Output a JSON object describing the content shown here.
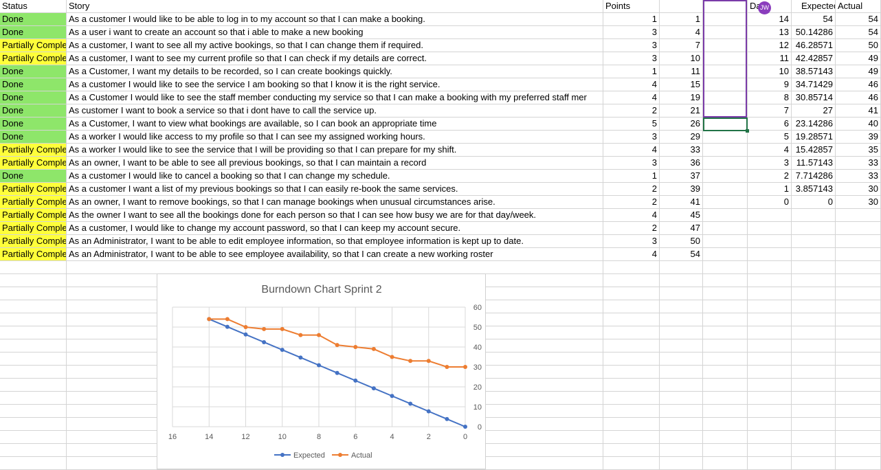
{
  "headers": {
    "status": "Status",
    "story": "Story",
    "points": "Points",
    "day": "Da",
    "expected": "Expected",
    "actual": "Actual"
  },
  "collaborator": {
    "initials": "JW",
    "color": "#8a3dbd"
  },
  "rows": [
    {
      "status": "Done",
      "story": "As a customer I would like to be able to log in to my account so that I can make a booking.",
      "points": "1",
      "cumulative": "1"
    },
    {
      "status": "Done",
      "story": "As a user i want to create an account so that i able to make a new booking",
      "points": "3",
      "cumulative": "4"
    },
    {
      "status": "Partially Comple",
      "story": "As a customer, I want to see all my active bookings, so that I can change them if required.",
      "points": "3",
      "cumulative": "7"
    },
    {
      "status": "Partially Comple",
      "story": "As a customer, I want to see my current profile so that I can check if my details are correct.",
      "points": "3",
      "cumulative": "10"
    },
    {
      "status": "Done",
      "story": "As a Customer, I want my details to be recorded, so I can create bookings quickly.",
      "points": "1",
      "cumulative": "11"
    },
    {
      "status": "Done",
      "story": "As a customer I would like to see the service I am booking so that I know it is the right service.",
      "points": "4",
      "cumulative": "15"
    },
    {
      "status": "Done",
      "story": "As a Customer I would like to see the staff member conducting my service so that I can make a booking with my preferred staff mer",
      "points": "4",
      "cumulative": "19"
    },
    {
      "status": "Done",
      "story": "As customer I want to book a service so that i dont have to call the service up.",
      "points": "2",
      "cumulative": "21"
    },
    {
      "status": "Done",
      "story": "As a Customer, I want to view what bookings are available, so I can book an appropriate time",
      "points": "5",
      "cumulative": "26"
    },
    {
      "status": "Done",
      "story": "As a worker I would like access to my profile so that I can see my assigned working hours.",
      "points": "3",
      "cumulative": "29"
    },
    {
      "status": "Partially Comple",
      "story": "As a worker I would like to see the service that I will be providing so that I can prepare for my shift.",
      "points": "4",
      "cumulative": "33"
    },
    {
      "status": "Partially Comple",
      "story": "As an owner, I want to be able to see all previous bookings, so that I can maintain a record",
      "points": "3",
      "cumulative": "36"
    },
    {
      "status": "Done",
      "story": "As a customer I would like to cancel a booking so that I can change my schedule.",
      "points": "1",
      "cumulative": "37"
    },
    {
      "status": "Partially Comple",
      "story": "As a customer I want a list of my previous bookings so that I can easily re-book the same services.",
      "points": "2",
      "cumulative": "39"
    },
    {
      "status": "Partially Comple",
      "story": "As an owner, I want to remove bookings, so that I can manage bookings when unusual circumstances arise.",
      "points": "2",
      "cumulative": "41"
    },
    {
      "status": "Partially Comple",
      "story": "As the owner I want to see all the bookings done for each person so that I can see how busy we are for that day/week.",
      "points": "4",
      "cumulative": "45"
    },
    {
      "status": "Partially Comple",
      "story": "As a customer, I would like to change my account password, so that I can keep my account secure.",
      "points": "2",
      "cumulative": "47"
    },
    {
      "status": "Partially Comple",
      "story": "As an Administrator, I want to be able to edit employee information, so that employee information is kept up to date.",
      "points": "3",
      "cumulative": "50"
    },
    {
      "status": "Partially Comple",
      "story": "As an Administrator, I want to be able to see employee availability, so that I can create a new working roster",
      "points": "4",
      "cumulative": "54"
    }
  ],
  "burndown": [
    {
      "day": "14",
      "expected": "54",
      "actual": "54"
    },
    {
      "day": "13",
      "expected": "50.14286",
      "actual": "54"
    },
    {
      "day": "12",
      "expected": "46.28571",
      "actual": "50"
    },
    {
      "day": "11",
      "expected": "42.42857",
      "actual": "49"
    },
    {
      "day": "10",
      "expected": "38.57143",
      "actual": "49"
    },
    {
      "day": "9",
      "expected": "34.71429",
      "actual": "46"
    },
    {
      "day": "8",
      "expected": "30.85714",
      "actual": "46"
    },
    {
      "day": "7",
      "expected": "27",
      "actual": "41"
    },
    {
      "day": "6",
      "expected": "23.14286",
      "actual": "40"
    },
    {
      "day": "5",
      "expected": "19.28571",
      "actual": "39"
    },
    {
      "day": "4",
      "expected": "15.42857",
      "actual": "35"
    },
    {
      "day": "3",
      "expected": "11.57143",
      "actual": "33"
    },
    {
      "day": "2",
      "expected": "7.714286",
      "actual": "33"
    },
    {
      "day": "1",
      "expected": "3.857143",
      "actual": "30"
    },
    {
      "day": "0",
      "expected": "0",
      "actual": "30"
    }
  ],
  "colors": {
    "done": "#8ee66a",
    "partial": "#ffff3a",
    "expected": "#4472c4",
    "actual": "#ed7d31"
  },
  "chart_data": {
    "type": "line",
    "title": "Burndown Chart Sprint 2",
    "x": [
      14,
      13,
      12,
      11,
      10,
      9,
      8,
      7,
      6,
      5,
      4,
      3,
      2,
      1,
      0
    ],
    "series": [
      {
        "name": "Expected",
        "values": [
          54,
          50.14286,
          46.28571,
          42.42857,
          38.57143,
          34.71429,
          30.85714,
          27,
          23.14286,
          19.28571,
          15.42857,
          11.57143,
          7.714286,
          3.857143,
          0
        ]
      },
      {
        "name": "Actual",
        "values": [
          54,
          54,
          50,
          49,
          49,
          46,
          46,
          41,
          40,
          39,
          35,
          33,
          33,
          30,
          30
        ]
      }
    ],
    "xlim": [
      16,
      0
    ],
    "ylim": [
      0,
      60
    ],
    "xticks": [
      16,
      14,
      12,
      10,
      8,
      6,
      4,
      2,
      0
    ],
    "yticks": [
      0,
      10,
      20,
      30,
      40,
      50,
      60
    ],
    "legend": "bottom",
    "grid": true
  }
}
